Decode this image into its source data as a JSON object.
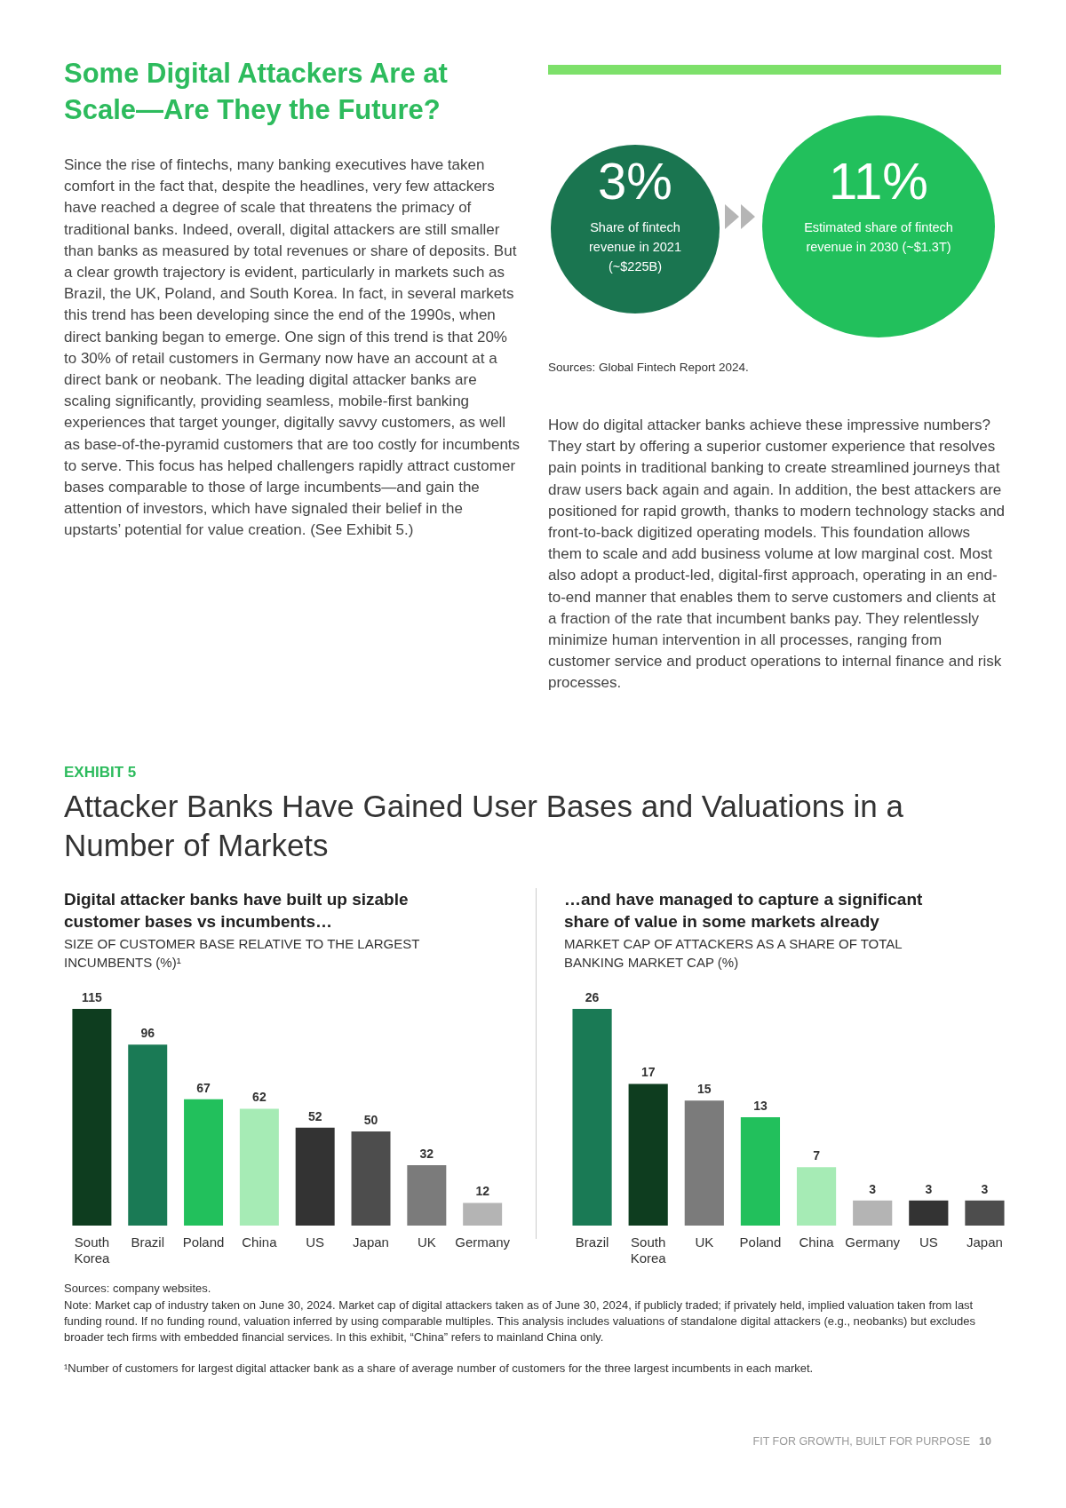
{
  "chart_data": [
    {
      "type": "other",
      "title": "Some Digital Attackers Are at Scale—Are They the Future?",
      "annotations": [
        "Since the rise of fintechs, many banking executives have taken comfort in the fact that, despite the headlines, very few attackers have reached a degree of scale that threatens the primacy of traditional banks. Indeed, overall, digital attackers are still smaller than banks as measured by total revenues or share of deposits. But a clear growth trajectory is evident, particularly in markets such as Brazil, the UK, Poland, and South Korea. In fact, in several markets this trend has been developing since the end of the 1990s, when direct banking began to emerge. One sign of this trend is that 20% to 30% of retail customers in Germany now have an account at a direct bank or neobank. The leading digital attacker banks are scaling significantly, providing seamless, mobile-first banking experiences that target younger, digitally savvy customers, as well as base-of-the-pyramid customers that are too costly for incumbents to serve. This focus has helped challengers rapidly attract customer bases comparable to those of large incumbents—and gain the attention of investors, which have signaled their belief in the upstarts’ potential for value creation. (See Exhibit 5.)",
        "3%",
        "Share of fintech revenue in 2021 (~$225B)",
        "11%",
        "Estimated share of fintech revenue in 2030 (~$1.3T)",
        "Sources: Global Fintech Report 2024.",
        "How do digital attacker banks achieve these impressive numbers? They start by offering a superior customer experience that resolves pain points in traditional banking to create streamlined journeys that draw users back again and again. In addition, the best attackers are positioned for rapid growth, thanks to modern technology stacks and front-to-back digitized operating models. This foundation allows them to scale and add business volume at low marginal cost. Most also adopt a product-led, digital-first approach, operating in an end-to-end manner that enables them to serve customers and clients at a fraction of the rate that incumbent banks pay. They relentlessly minimize human intervention in all processes, ranging from customer service and product operations to internal finance and risk processes."
      ]
    },
    {
      "type": "bar",
      "title": "Digital attacker banks have built up sizable customer bases vs incumbents…",
      "subtitle": "SIZE OF CUSTOMER BASE RELATIVE TO THE LARGEST INCUMBENTS (%)¹",
      "annotations": [
        "EXHIBIT 5",
        "Attacker Banks Have Gained User Bases and Valuations in a Number of Markets"
      ],
      "categories": [
        "South Korea",
        "Brazil",
        "Poland",
        "China",
        "US",
        "Japan",
        "UK",
        "Germany"
      ],
      "values": [
        115,
        96,
        67,
        62,
        52,
        50,
        32,
        12
      ],
      "colors": [
        "#0e3d1f",
        "#1a7a55",
        "#22c05c",
        "#a6ebb5",
        "#333333",
        "#4d4d4d",
        "#7b7b7b",
        "#b4b4b4"
      ],
      "data_labels": true,
      "grid": false,
      "legend": false
    },
    {
      "type": "bar",
      "title": "…and have managed to capture a significant share of value in some markets already",
      "subtitle": "MARKET CAP OF ATTACKERS AS A SHARE OF TOTAL BANKING MARKET CAP (%)",
      "annotations": [
        "Sources: company websites.",
        "Note: Market cap of industry taken on June 30, 2024. Market cap of digital attackers taken as of June 30, 2024, if publicly traded; if privately held, implied valuation taken from last funding round. If no funding round, valuation inferred by using comparable multiples. This analysis includes valuations of standalone digital attackers (e.g., neobanks) but excludes broader tech firms with embedded financial services. In this exhibit, “China” refers to mainland China only.",
        "¹Number of customers for largest digital attacker bank as a share of average number of customers for the three largest incumbents in each market.",
        "FIT FOR GROWTH, BUILT FOR PURPOSE",
        "10"
      ],
      "categories": [
        "Brazil",
        "South Korea",
        "UK",
        "Poland",
        "China",
        "Germany",
        "US",
        "Japan"
      ],
      "values": [
        26,
        17,
        15,
        13,
        7,
        3,
        3,
        3
      ],
      "colors": [
        "#1a7a55",
        "#0e3d1f",
        "#7b7b7b",
        "#22c05c",
        "#a6ebb5",
        "#b4b4b4",
        "#333333",
        "#4d4d4d"
      ],
      "data_labels": true,
      "grid": false,
      "legend": false
    }
  ]
}
